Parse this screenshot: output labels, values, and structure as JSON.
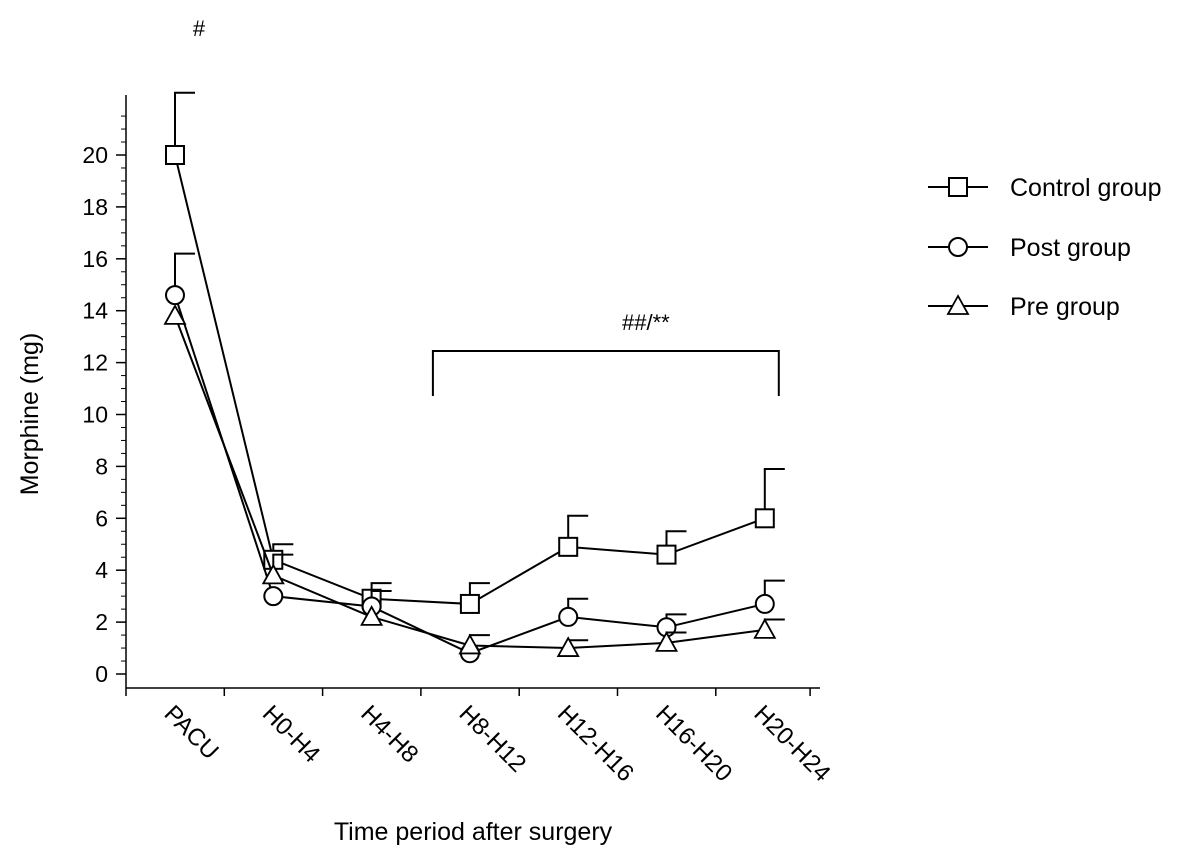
{
  "chart_data": {
    "type": "line",
    "title": "",
    "xlabel": "Time period after surgery",
    "ylabel": "Morphine (mg)",
    "ylim": [
      0,
      22
    ],
    "yticks": [
      0,
      2,
      4,
      6,
      8,
      10,
      12,
      14,
      16,
      18,
      20
    ],
    "yticks_minor_step": 0.5,
    "grid": false,
    "legend_position": "right",
    "categories": [
      "PACU",
      "H0-H4",
      "H4-H8",
      "H8-H12",
      "H12-H16",
      "H16-H20",
      "H20-H24"
    ],
    "series": [
      {
        "name": "Control group",
        "marker": "square",
        "values": [
          20.0,
          4.4,
          2.9,
          2.7,
          4.9,
          4.6,
          6.0
        ],
        "error_upper": [
          22.4,
          5.0,
          3.5,
          3.5,
          6.1,
          5.5,
          7.9
        ]
      },
      {
        "name": "Post group",
        "marker": "circle",
        "values": [
          14.6,
          3.0,
          2.6,
          0.8,
          2.2,
          1.8,
          2.7
        ],
        "error_upper": [
          16.2,
          null,
          3.2,
          null,
          2.9,
          2.3,
          3.6
        ]
      },
      {
        "name": "Pre group",
        "marker": "triangle",
        "values": [
          13.8,
          3.8,
          2.2,
          1.1,
          1.0,
          1.2,
          1.7
        ],
        "error_upper": [
          null,
          4.6,
          null,
          1.5,
          1.3,
          1.6,
          2.1
        ]
      }
    ],
    "annotations": {
      "pacu_mark": "#",
      "bracket_label": "##/**",
      "bracket_from": "H8-H12",
      "bracket_to": "H20-H24"
    }
  }
}
